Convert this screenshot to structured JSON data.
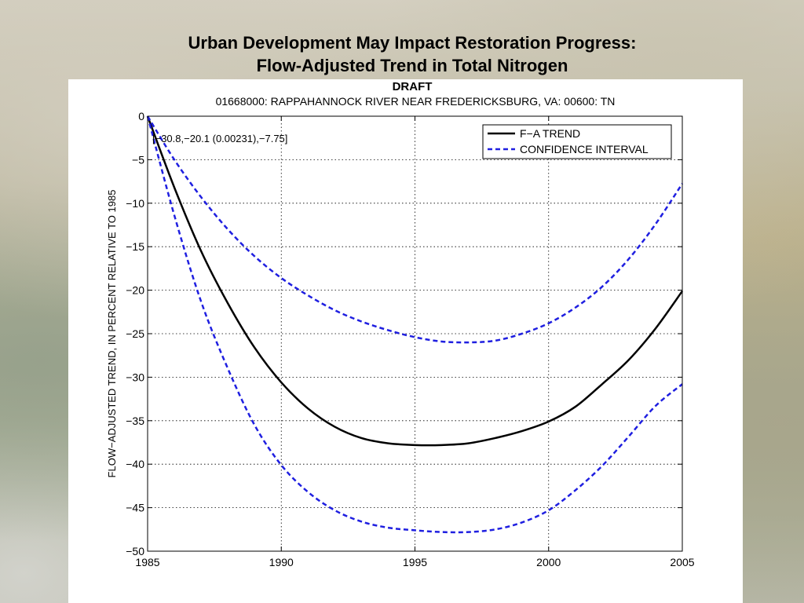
{
  "slide": {
    "title_line1": "Urban Development May Impact Restoration Progress:",
    "title_line2": "Flow-Adjusted Trend in Total Nitrogen",
    "draft_label": "DRAFT"
  },
  "chart_data": {
    "type": "line",
    "title": "01668000: RAPPAHANNOCK RIVER NEAR FREDERICKSBURG, VA: 00600: TN",
    "xlabel": "",
    "ylabel": "FLOW−ADJUSTED TREND, IN PERCENT RELATIVE TO 1985",
    "xlim": [
      1985,
      2005
    ],
    "ylim": [
      -50,
      0
    ],
    "x_ticks": [
      1985,
      1990,
      1995,
      2000,
      2005
    ],
    "y_ticks": [
      0,
      -5,
      -10,
      -15,
      -20,
      -25,
      -30,
      -35,
      -40,
      -45,
      -50
    ],
    "grid": true,
    "legend_position": "top-right",
    "annotation": "[−30.8,−20.1 (0.00231),−7.75]",
    "x": [
      1985,
      1986,
      1987,
      1988,
      1989,
      1990,
      1991,
      1992,
      1993,
      1994,
      1995,
      1996,
      1997,
      1998,
      1999,
      2000,
      2001,
      2002,
      2003,
      2004,
      2005
    ],
    "series": [
      {
        "name": "F−A TREND",
        "style": "solid",
        "color": "#000000",
        "values": [
          0,
          -8.2,
          -15.5,
          -21.5,
          -26.6,
          -30.6,
          -33.6,
          -35.7,
          -37.0,
          -37.6,
          -37.8,
          -37.8,
          -37.6,
          -37.0,
          -36.2,
          -35.1,
          -33.4,
          -30.8,
          -28.0,
          -24.4,
          -20.1
        ]
      },
      {
        "name": "CONFIDENCE INTERVAL",
        "style": "dashed",
        "color": "#1f1fe0",
        "values": [
          0,
          -5.0,
          -9.3,
          -13.0,
          -16.1,
          -18.6,
          -20.6,
          -22.3,
          -23.6,
          -24.6,
          -25.4,
          -25.9,
          -26.0,
          -25.8,
          -25.0,
          -23.8,
          -22.0,
          -19.6,
          -16.4,
          -12.4,
          -7.75
        ]
      },
      {
        "name": "",
        "style": "dashed",
        "color": "#1f1fe0",
        "values": [
          0,
          -11.4,
          -21.3,
          -29.0,
          -35.5,
          -40.1,
          -43.2,
          -45.3,
          -46.6,
          -47.3,
          -47.6,
          -47.8,
          -47.8,
          -47.5,
          -46.7,
          -45.3,
          -43.0,
          -40.2,
          -36.8,
          -33.3,
          -30.8
        ]
      }
    ]
  }
}
